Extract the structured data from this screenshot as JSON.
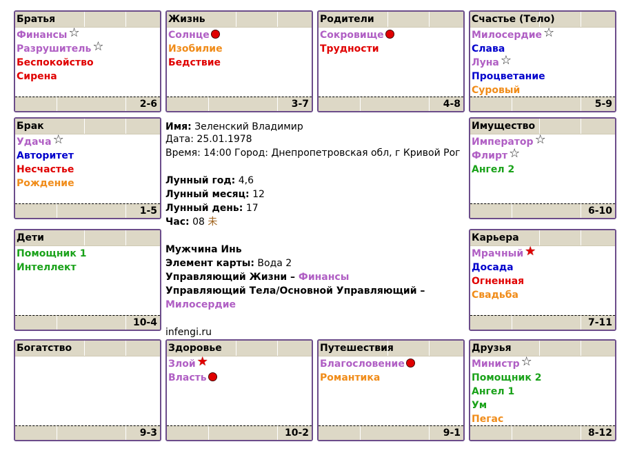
{
  "cells": [
    {
      "id": "bratya",
      "title": "Братья",
      "num": "2-6",
      "stars": [
        {
          "name": "Финансы",
          "color": "purple",
          "mark": "outline"
        },
        {
          "name": "Разрушитель",
          "color": "purple",
          "mark": "outline"
        },
        {
          "name": "Беспокойство",
          "color": "red",
          "mark": ""
        },
        {
          "name": "Сирена",
          "color": "red",
          "mark": ""
        }
      ]
    },
    {
      "id": "zhizn",
      "title": "Жизнь",
      "num": "3-7",
      "stars": [
        {
          "name": "Солнце",
          "color": "purple",
          "mark": "dot"
        },
        {
          "name": "Изобилие",
          "color": "orange",
          "mark": ""
        },
        {
          "name": "Бедствие",
          "color": "red",
          "mark": ""
        }
      ]
    },
    {
      "id": "roditeli",
      "title": "Родители",
      "num": "4-8",
      "stars": [
        {
          "name": "Сокровище",
          "color": "purple",
          "mark": "dot"
        },
        {
          "name": "Трудности",
          "color": "red",
          "mark": ""
        }
      ]
    },
    {
      "id": "schastie",
      "title": "Счастье (Тело)",
      "num": "5-9",
      "stars": [
        {
          "name": "Милосердие",
          "color": "purple",
          "mark": "outline"
        },
        {
          "name": "Слава",
          "color": "blue",
          "mark": ""
        },
        {
          "name": "Луна",
          "color": "purple",
          "mark": "outline"
        },
        {
          "name": "Процветание",
          "color": "blue",
          "mark": ""
        },
        {
          "name": "Суровый",
          "color": "orange",
          "mark": ""
        }
      ]
    },
    {
      "id": "brak",
      "title": "Брак",
      "num": "1-5",
      "stars": [
        {
          "name": "Удача",
          "color": "purple",
          "mark": "outline"
        },
        {
          "name": "Авторитет",
          "color": "blue",
          "mark": ""
        },
        {
          "name": "Несчастье",
          "color": "red",
          "mark": ""
        },
        {
          "name": "Рождение",
          "color": "orange",
          "mark": ""
        }
      ]
    },
    {
      "id": "imushchestvo",
      "title": "Имущество",
      "num": "6-10",
      "stars": [
        {
          "name": "Император",
          "color": "purple",
          "mark": "outline"
        },
        {
          "name": "Флирт",
          "color": "purple",
          "mark": "outline"
        },
        {
          "name": "Ангел 2",
          "color": "green",
          "mark": ""
        }
      ]
    },
    {
      "id": "deti",
      "title": "Дети",
      "num": "10-4",
      "stars": [
        {
          "name": "Помощник 1",
          "color": "green",
          "mark": ""
        },
        {
          "name": "Интеллект",
          "color": "green",
          "mark": ""
        }
      ]
    },
    {
      "id": "karera",
      "title": "Карьера",
      "num": "7-11",
      "stars": [
        {
          "name": "Мрачный",
          "color": "purple",
          "mark": "red"
        },
        {
          "name": "Досада",
          "color": "blue",
          "mark": ""
        },
        {
          "name": "Огненная",
          "color": "red",
          "mark": ""
        },
        {
          "name": "Свадьба",
          "color": "orange",
          "mark": ""
        }
      ]
    },
    {
      "id": "bogatstvo",
      "title": "Богатство",
      "num": "9-3",
      "stars": []
    },
    {
      "id": "zdorovie",
      "title": "Здоровье",
      "num": "10-2",
      "stars": [
        {
          "name": "Злой",
          "color": "purple",
          "mark": "red"
        },
        {
          "name": "Власть",
          "color": "purple",
          "mark": "dot"
        }
      ]
    },
    {
      "id": "puteshestviya",
      "title": "Путешествия",
      "num": "9-1",
      "stars": [
        {
          "name": "Благословение",
          "color": "purple",
          "mark": "dot"
        },
        {
          "name": "Романтика",
          "color": "orange",
          "mark": ""
        }
      ]
    },
    {
      "id": "druzya",
      "title": "Друзья",
      "num": "8-12",
      "stars": [
        {
          "name": "Министр",
          "color": "purple",
          "mark": "outline"
        },
        {
          "name": "Помощник 2",
          "color": "green",
          "mark": ""
        },
        {
          "name": "Ангел 1",
          "color": "green",
          "mark": ""
        },
        {
          "name": "Ум",
          "color": "green",
          "mark": ""
        },
        {
          "name": "Пегас",
          "color": "orange",
          "mark": ""
        }
      ]
    }
  ],
  "center": {
    "name_label": "Имя:",
    "name_value": " Зеленский Владимир",
    "date_line": "Дата: 25.01.1978",
    "time_line": "Время: 14:00 Город: Днепропетровская обл, г Кривой Рог",
    "lunar_year_label": "Лунный год:",
    "lunar_year_value": " 4,6",
    "lunar_month_label": "Лунный месяц:",
    "lunar_month_value": " 12",
    "lunar_day_label": "Лунный день:",
    "lunar_day_value": " 17",
    "hour_label": "Час:",
    "hour_value": " 08 ",
    "hour_glyph": "未",
    "gender_line": "Мужчина Инь",
    "element_label": "Элемент карты:",
    "element_value": " Вода 2",
    "life_ruler_label": "Управляющий Жизни –",
    "life_ruler_value": " Финансы",
    "body_ruler_label": "Управляющий Тела/Основной Управляющий –",
    "body_ruler_value": "Милосердие",
    "site": "infengi.ru"
  },
  "colors": {
    "purple": "#b05fc4",
    "orange": "#f08c1a",
    "red": "#e00000",
    "blue": "#0000cc",
    "green": "#1aa21a",
    "border": "#6b4c8a",
    "header": "#ddd8c6"
  }
}
